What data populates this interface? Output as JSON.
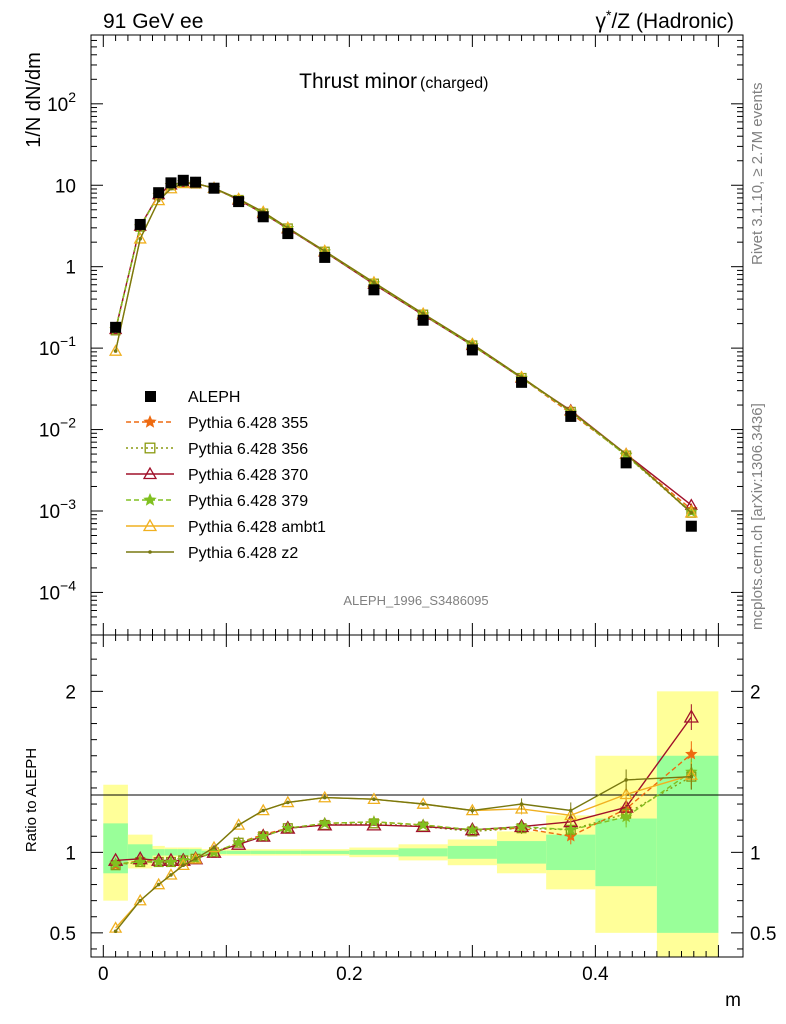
{
  "header": {
    "left": "91 GeV ee",
    "right_prefix": "γ",
    "right_sup": "*",
    "right_suffix": "/Z (Hadronic)"
  },
  "side_labels": {
    "rivet": "Rivet 3.1.10, ≥ 2.7M events",
    "mcplots": "mcplots.cern.ch [arXiv:1306.3436]"
  },
  "chart_data": [
    {
      "type": "line",
      "title": "Thrust minor",
      "title_suffix": "(charged)",
      "ylabel": "1/N dN/dm",
      "yscale": "log",
      "ylim": [
        3e-05,
        700
      ],
      "xlim": [
        -0.01,
        0.52
      ],
      "watermark": "ALEPH_1996_S3486095",
      "y_ticks": [
        {
          "value": 0.0001,
          "mant": "10",
          "exp": "−4"
        },
        {
          "value": 0.001,
          "mant": "10",
          "exp": "−3"
        },
        {
          "value": 0.01,
          "mant": "10",
          "exp": "−2"
        },
        {
          "value": 0.1,
          "mant": "10",
          "exp": "−1"
        },
        {
          "value": 1,
          "mant": "1",
          "exp": ""
        },
        {
          "value": 10,
          "mant": "10",
          "exp": ""
        },
        {
          "value": 100,
          "mant": "10",
          "exp": "2"
        }
      ],
      "legend_position": "lower-left",
      "data_series": {
        "name": "ALEPH",
        "x": [
          0.01,
          0.03,
          0.045,
          0.055,
          0.065,
          0.075,
          0.09,
          0.11,
          0.13,
          0.15,
          0.18,
          0.22,
          0.26,
          0.3,
          0.34,
          0.38,
          0.425,
          0.478
        ],
        "y": [
          0.18,
          3.3,
          8.1,
          10.7,
          11.5,
          10.9,
          9.2,
          6.3,
          4.1,
          2.55,
          1.3,
          0.52,
          0.22,
          0.095,
          0.038,
          0.0145,
          0.0039,
          0.00065
        ]
      },
      "series": [
        {
          "name": "Pythia 6.428 355",
          "color": "#ee6a10",
          "dash": "5,3",
          "marker": "star",
          "y": [
            0.17,
            3.1,
            7.6,
            10.0,
            10.8,
            10.5,
            9.2,
            6.6,
            4.5,
            2.95,
            1.53,
            0.62,
            0.258,
            0.108,
            0.043,
            0.0158,
            0.0049,
            0.00105
          ]
        },
        {
          "name": "Pythia 6.428 356",
          "color": "#8a9a10",
          "dash": "2,3",
          "marker": "square",
          "y": [
            0.165,
            3.1,
            7.6,
            10.0,
            10.8,
            10.5,
            9.2,
            6.6,
            4.5,
            2.95,
            1.53,
            0.62,
            0.258,
            0.108,
            0.043,
            0.0165,
            0.0048,
            0.00095
          ]
        },
        {
          "name": "Pythia 6.428 370",
          "color": "#a0102a",
          "dash": "",
          "marker": "triangle",
          "y": [
            0.17,
            3.15,
            7.7,
            10.1,
            10.9,
            10.5,
            9.2,
            6.6,
            4.5,
            2.93,
            1.52,
            0.61,
            0.255,
            0.108,
            0.043,
            0.0172,
            0.005,
            0.00118
          ]
        },
        {
          "name": "Pythia 6.428 379",
          "color": "#80c020",
          "dash": "5,3",
          "marker": "star",
          "y": [
            0.17,
            3.1,
            7.6,
            10.0,
            10.8,
            10.5,
            9.2,
            6.6,
            4.5,
            2.95,
            1.53,
            0.62,
            0.258,
            0.108,
            0.043,
            0.0165,
            0.0048,
            0.00098
          ]
        },
        {
          "name": "Pythia 6.428 ambt1",
          "color": "#f0b020",
          "dash": "",
          "marker": "triangle",
          "y": [
            0.092,
            2.2,
            6.5,
            9.1,
            10.5,
            10.5,
            9.2,
            6.8,
            4.7,
            3.0,
            1.56,
            0.64,
            0.265,
            0.112,
            0.044,
            0.0168,
            0.005,
            0.00095
          ]
        },
        {
          "name": "Pythia 6.428 z2",
          "color": "#787810",
          "dash": "",
          "marker": "dot",
          "y": [
            0.092,
            2.2,
            6.5,
            9.1,
            10.5,
            10.5,
            9.2,
            6.8,
            4.7,
            3.0,
            1.56,
            0.64,
            0.265,
            0.112,
            0.044,
            0.0168,
            0.005,
            0.00095
          ]
        }
      ]
    },
    {
      "type": "line",
      "ylabel": "Ratio to ALEPH",
      "xlabel": "m",
      "ylim": [
        0.35,
        2.35
      ],
      "xlim": [
        -0.01,
        0.52
      ],
      "x_ticks": [
        {
          "value": 0,
          "label": "0"
        },
        {
          "value": 0.2,
          "label": "0.2"
        },
        {
          "value": 0.4,
          "label": "0.4"
        }
      ],
      "y_ticks": [
        {
          "value": 0.5,
          "label": "0.5"
        },
        {
          "value": 1,
          "label": "1"
        },
        {
          "value": 2,
          "label": "2"
        }
      ],
      "bins": [
        [
          0,
          0.02
        ],
        [
          0.02,
          0.04
        ],
        [
          0.04,
          0.05
        ],
        [
          0.05,
          0.06
        ],
        [
          0.06,
          0.07
        ],
        [
          0.07,
          0.08
        ],
        [
          0.08,
          0.1
        ],
        [
          0.1,
          0.12
        ],
        [
          0.12,
          0.14
        ],
        [
          0.14,
          0.16
        ],
        [
          0.16,
          0.2
        ],
        [
          0.2,
          0.24
        ],
        [
          0.24,
          0.28
        ],
        [
          0.28,
          0.32
        ],
        [
          0.32,
          0.36
        ],
        [
          0.36,
          0.4
        ],
        [
          0.4,
          0.45
        ],
        [
          0.45,
          0.5
        ]
      ],
      "band_yellow": [
        [
          0.7,
          1.42
        ],
        [
          0.9,
          1.11
        ],
        [
          0.96,
          1.04
        ],
        [
          0.97,
          1.03
        ],
        [
          0.97,
          1.03
        ],
        [
          0.97,
          1.03
        ],
        [
          0.98,
          1.02
        ],
        [
          0.98,
          1.02
        ],
        [
          0.98,
          1.02
        ],
        [
          0.98,
          1.02
        ],
        [
          0.98,
          1.02
        ],
        [
          0.97,
          1.03
        ],
        [
          0.95,
          1.05
        ],
        [
          0.92,
          1.08
        ],
        [
          0.87,
          1.13
        ],
        [
          0.77,
          1.23
        ],
        [
          0.5,
          1.6
        ],
        [
          0.3,
          2.0
        ]
      ],
      "band_green": [
        [
          0.87,
          1.18
        ],
        [
          0.95,
          1.05
        ],
        [
          0.98,
          1.02
        ],
        [
          0.98,
          1.02
        ],
        [
          0.98,
          1.02
        ],
        [
          0.98,
          1.02
        ],
        [
          0.99,
          1.01
        ],
        [
          0.99,
          1.01
        ],
        [
          0.99,
          1.01
        ],
        [
          0.99,
          1.01
        ],
        [
          0.99,
          1.01
        ],
        [
          0.985,
          1.015
        ],
        [
          0.975,
          1.025
        ],
        [
          0.96,
          1.04
        ],
        [
          0.93,
          1.07
        ],
        [
          0.89,
          1.11
        ],
        [
          0.79,
          1.21
        ],
        [
          0.5,
          1.6
        ]
      ],
      "series_ratio": [
        {
          "name": "Pythia 6.428 355",
          "y": [
            0.92,
            0.95,
            0.94,
            0.94,
            0.95,
            0.96,
            1.0,
            1.06,
            1.11,
            1.15,
            1.18,
            1.19,
            1.17,
            1.14,
            1.15,
            1.1,
            1.27,
            1.61
          ]
        },
        {
          "name": "Pythia 6.428 356",
          "y": [
            0.92,
            0.94,
            0.94,
            0.94,
            0.95,
            0.96,
            1.0,
            1.06,
            1.1,
            1.15,
            1.17,
            1.18,
            1.16,
            1.13,
            1.15,
            1.14,
            1.24,
            1.47
          ]
        },
        {
          "name": "Pythia 6.428 370",
          "y": [
            0.95,
            0.96,
            0.95,
            0.95,
            0.95,
            0.96,
            1.0,
            1.05,
            1.1,
            1.15,
            1.17,
            1.17,
            1.16,
            1.14,
            1.16,
            1.19,
            1.28,
            1.84
          ]
        },
        {
          "name": "Pythia 6.428 379",
          "y": [
            0.93,
            0.94,
            0.94,
            0.94,
            0.95,
            0.96,
            1.0,
            1.06,
            1.1,
            1.15,
            1.18,
            1.19,
            1.17,
            1.14,
            1.16,
            1.14,
            1.22,
            1.5
          ]
        },
        {
          "name": "Pythia 6.428 ambt1",
          "y": [
            0.53,
            0.7,
            0.8,
            0.86,
            0.92,
            0.96,
            1.03,
            1.17,
            1.26,
            1.31,
            1.34,
            1.33,
            1.3,
            1.26,
            1.27,
            1.23,
            1.36,
            1.48
          ]
        },
        {
          "name": "Pythia 6.428 z2",
          "y": [
            0.51,
            0.7,
            0.8,
            0.86,
            0.92,
            0.96,
            1.03,
            1.17,
            1.26,
            1.31,
            1.34,
            1.33,
            1.3,
            1.26,
            1.3,
            1.26,
            1.45,
            1.47
          ]
        }
      ]
    }
  ]
}
